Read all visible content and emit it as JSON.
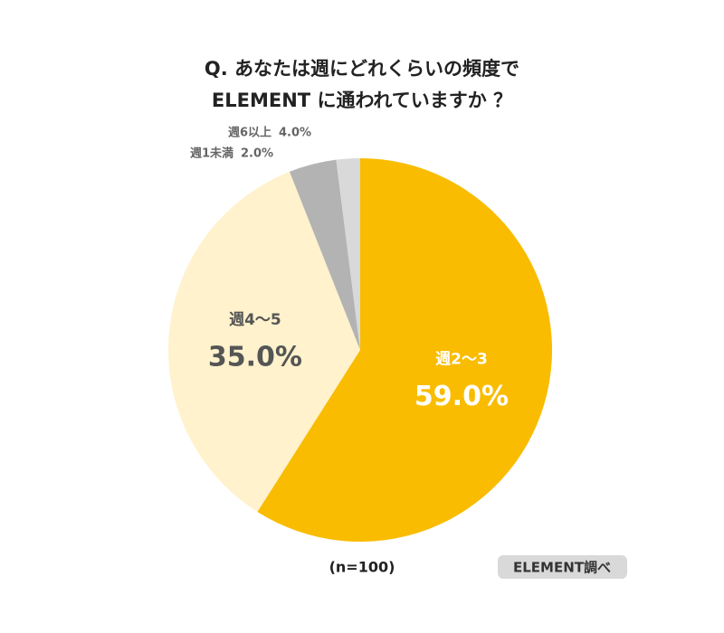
{
  "chart_data": {
    "type": "pie",
    "title": [
      "Q.  あなたは週にどれくらいの頻度で",
      "ELEMENT に通われていますか  ？"
    ],
    "categories": [
      "週2〜3",
      "週4〜5",
      "週6以上",
      "週1未満"
    ],
    "values": [
      59,
      35,
      4,
      2
    ],
    "value_labels": [
      "59.0%",
      "35.0%",
      "4.0%",
      "2.0%"
    ],
    "colors": [
      "#f9bc00",
      "#fff2cc",
      "#b3b3b3",
      "#d9d9d9"
    ],
    "note": "(n=100)",
    "source": "ELEMENT調べ"
  }
}
